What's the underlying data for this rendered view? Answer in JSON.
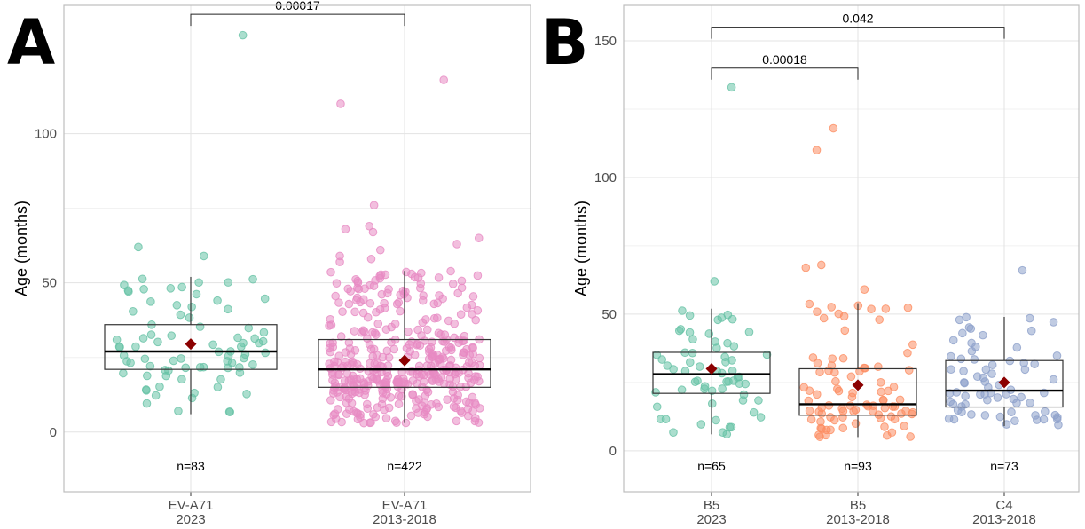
{
  "figure": {
    "panels": [
      "A",
      "B"
    ]
  },
  "chart_data": [
    {
      "type": "scatter",
      "panel": "A",
      "ylabel": "Age (months)",
      "ylim": [
        -20,
        143
      ],
      "yticks": [
        "0",
        "50",
        "100"
      ],
      "grid": true,
      "categories": [
        {
          "name": "EV-A71",
          "period": "2023",
          "color": "#66c2a5"
        },
        {
          "name": "EV-A71",
          "period": "2013-2018",
          "color": "#e78ac3"
        }
      ],
      "counts": [
        "n=83",
        "n=422"
      ],
      "box": [
        {
          "min": 6,
          "q1": 21,
          "median": 27,
          "q3": 36,
          "max": 52,
          "mean": 29.5
        },
        {
          "min": 3,
          "q1": 15,
          "median": 21,
          "q3": 31,
          "max": 54,
          "mean": 24
        }
      ],
      "outliers": [
        [
          59,
          62,
          133
        ],
        [
          57,
          58,
          59,
          61,
          63,
          65,
          67,
          68,
          69,
          76,
          110,
          118
        ]
      ],
      "comparisons": [
        {
          "from": 0,
          "to": 1,
          "y": 140,
          "p": "0.00017"
        }
      ]
    },
    {
      "type": "scatter",
      "panel": "B",
      "ylabel": "Age (months)",
      "ylim": [
        -15,
        163
      ],
      "yticks": [
        "0",
        "50",
        "100",
        "150"
      ],
      "grid": true,
      "categories": [
        {
          "name": "B5",
          "period": "2023",
          "color": "#66c2a5"
        },
        {
          "name": "B5",
          "period": "2013-2018",
          "color": "#fc8d62"
        },
        {
          "name": "C4",
          "period": "2013-2018",
          "color": "#8da0cb"
        }
      ],
      "counts": [
        "n=65",
        "n=93",
        "n=73"
      ],
      "box": [
        {
          "min": 6,
          "q1": 21,
          "median": 28,
          "q3": 36,
          "max": 52,
          "mean": 30
        },
        {
          "min": 5,
          "q1": 13,
          "median": 17,
          "q3": 30,
          "max": 54,
          "mean": 24
        },
        {
          "min": 9,
          "q1": 16,
          "median": 22,
          "q3": 33,
          "max": 49,
          "mean": 25
        }
      ],
      "outliers": [
        [
          62,
          133
        ],
        [
          59,
          67,
          68,
          110,
          118
        ],
        [
          66
        ]
      ],
      "comparisons": [
        {
          "from": 0,
          "to": 2,
          "y": 155,
          "p": "0.042"
        },
        {
          "from": 0,
          "to": 1,
          "y": 140,
          "p": "0.00018"
        }
      ]
    }
  ]
}
